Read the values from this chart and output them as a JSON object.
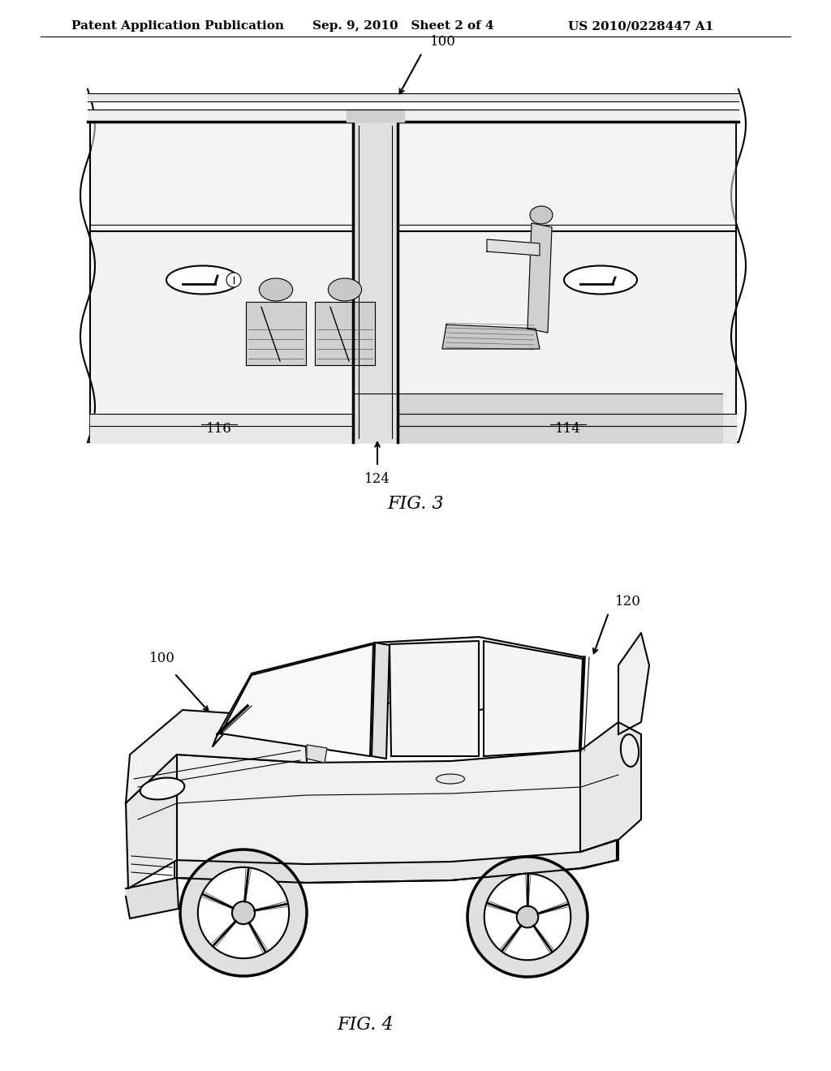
{
  "header_left": "Patent Application Publication",
  "header_mid": "Sep. 9, 2010   Sheet 2 of 4",
  "header_right": "US 2010/0228447 A1",
  "fig3_label": "FIG. 3",
  "fig4_label": "FIG. 4",
  "fig3_ref100": "100",
  "fig3_ref116": "116",
  "fig3_ref114": "114",
  "fig3_ref124": "124",
  "fig4_ref100": "100",
  "fig4_ref120": "120",
  "bg_color": "#ffffff",
  "line_color": "#000000",
  "text_color": "#000000",
  "header_fontsize": 11,
  "fig_label_fontsize": 16,
  "ref_fontsize": 12
}
